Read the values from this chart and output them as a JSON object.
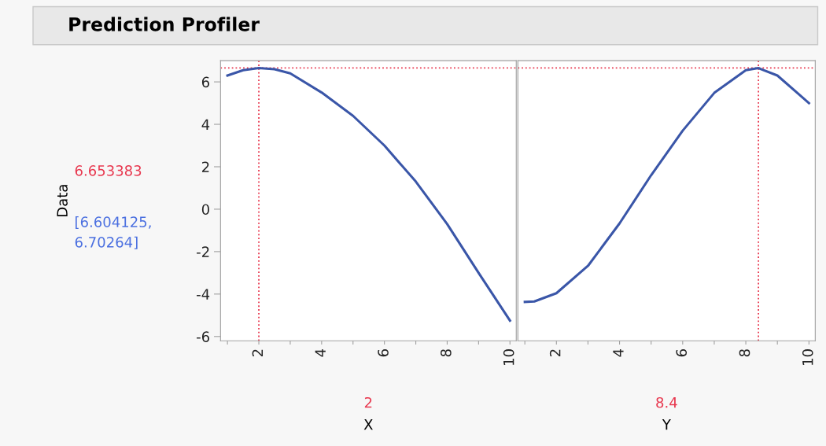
{
  "chart_data": [
    {
      "type": "line",
      "title": "Prediction Profiler",
      "ylabel": "Data",
      "xlabel": "X",
      "x": [
        1,
        1.5,
        2,
        2.5,
        3,
        4,
        5,
        6,
        7,
        8,
        9,
        10
      ],
      "series": [
        {
          "color": "#3a56a8",
          "values": [
            6.3,
            6.55,
            6.65,
            6.6,
            6.4,
            5.5,
            4.4,
            3.0,
            1.3,
            -0.7,
            -3.0,
            -5.25
          ]
        }
      ],
      "xlim": [
        0.78,
        10.2
      ],
      "ylim": [
        -6.2,
        7
      ],
      "xticks": [
        {
          "value": 1,
          "label": null
        },
        2,
        {
          "value": 3,
          "label": null
        },
        4,
        {
          "value": 5,
          "label": null
        },
        6,
        {
          "value": 7,
          "label": null
        },
        8,
        {
          "value": 9,
          "label": null
        },
        10
      ],
      "yticks": [
        -6,
        -4,
        -2,
        0,
        2,
        4,
        6
      ],
      "ref_lines": [
        {
          "axis": "y",
          "value": 6.653383,
          "color": "#e8384f",
          "line_style": "dotted"
        },
        {
          "axis": "x",
          "value": 2,
          "color": "#e8384f",
          "line_style": "dotted"
        }
      ],
      "annotations": [
        "6.653383",
        "[6.604125,\n6.70264]",
        "2"
      ],
      "grid": false,
      "legend": false,
      "marker": "none",
      "line_style": "solid"
    },
    {
      "type": "line",
      "xlabel": "Y",
      "x": [
        1,
        1.3,
        2,
        3,
        4,
        5,
        6,
        7,
        8,
        8.4,
        9,
        10
      ],
      "series": [
        {
          "color": "#3a56a8",
          "values": [
            -4.37,
            -4.35,
            -3.96,
            -2.67,
            -0.67,
            1.6,
            3.7,
            5.48,
            6.55,
            6.65,
            6.3,
            5.0
          ]
        }
      ],
      "xlim": [
        0.78,
        10.2
      ],
      "ylim": [
        -6.2,
        7
      ],
      "xticks": [
        {
          "value": 1,
          "label": null
        },
        2,
        {
          "value": 3,
          "label": null
        },
        4,
        {
          "value": 5,
          "label": null
        },
        6,
        {
          "value": 7,
          "label": null
        },
        8,
        {
          "value": 9,
          "label": null
        },
        10
      ],
      "yticks": [
        -6,
        -4,
        -2,
        0,
        2,
        4,
        6
      ],
      "tick_labels": "x",
      "ref_lines": [
        {
          "axis": "y",
          "value": 6.653383,
          "color": "#e8384f",
          "line_style": "dotted"
        },
        {
          "axis": "x",
          "value": 8.4,
          "color": "#e8384f",
          "line_style": "dotted"
        }
      ],
      "annotations": [
        "8.4"
      ],
      "grid": false,
      "legend": false,
      "marker": "none",
      "line_style": "solid"
    }
  ]
}
